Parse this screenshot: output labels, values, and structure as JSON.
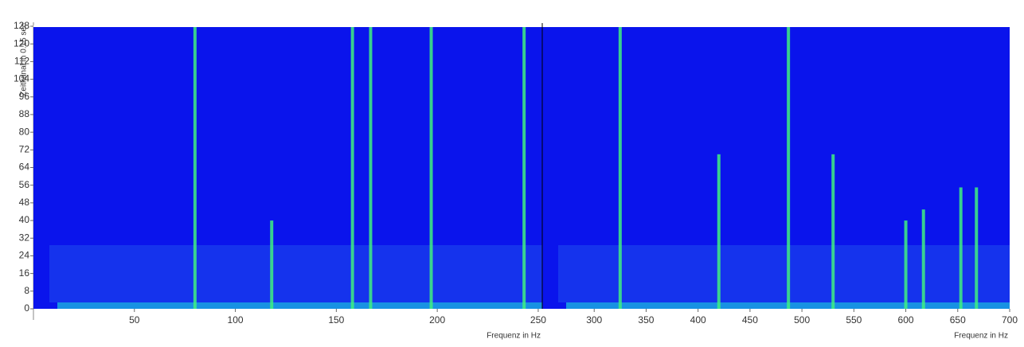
{
  "chart_data": [
    {
      "type": "spectrogram",
      "y_label": "Zeitkanal in 0.15 sec",
      "x_label": "Frequenz in Hz",
      "xlim": [
        0,
        252
      ],
      "xticks": [
        50,
        100,
        150,
        200,
        250
      ],
      "ylim": [
        0,
        128
      ],
      "yticks": [
        0,
        8,
        16,
        24,
        32,
        40,
        48,
        56,
        64,
        72,
        80,
        88,
        96,
        104,
        112,
        120,
        128
      ],
      "background": "#0a14ec",
      "color": "#40f080",
      "x": [
        80,
        118,
        158,
        167,
        197,
        243
      ],
      "values": [
        128,
        40,
        128,
        128,
        128,
        128
      ]
    },
    {
      "type": "spectrogram",
      "x_label": "Frequenz in Hz",
      "xlim": [
        250,
        700
      ],
      "xticks": [
        300,
        350,
        400,
        450,
        500,
        550,
        600,
        650,
        700
      ],
      "ylim": [
        0,
        128
      ],
      "background": "#0a14ec",
      "color": "#40f080",
      "x": [
        325,
        420,
        487,
        530,
        600,
        617,
        653,
        668
      ],
      "values": [
        128,
        70,
        128,
        70,
        40,
        45,
        55,
        55
      ]
    }
  ]
}
